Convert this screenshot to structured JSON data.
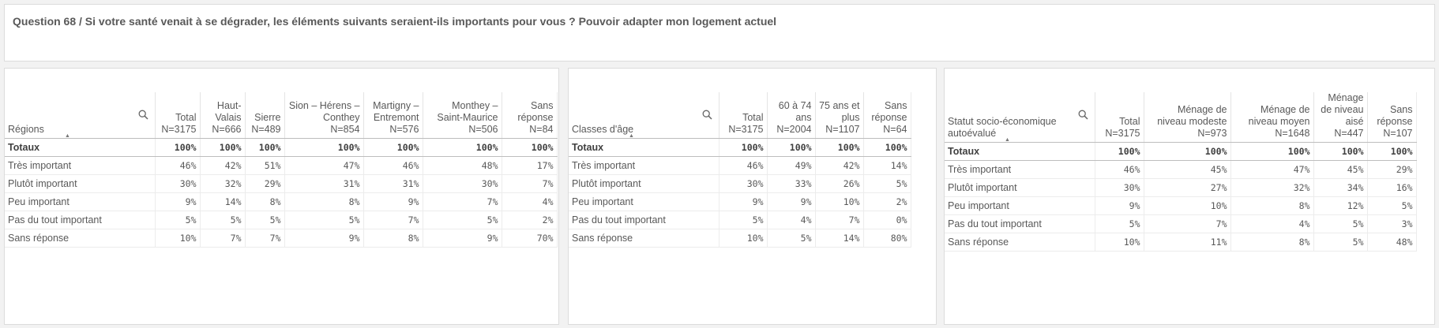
{
  "question": "Question 68 / Si votre santé venait à se dégrader, les éléments suivants seraient-ils importants pour vous ? Pouvoir adapter mon logement actuel",
  "row_labels": [
    "Totaux",
    "Très important",
    "Plutôt important",
    "Peu important",
    "Pas du tout important",
    "Sans réponse"
  ],
  "tables": [
    {
      "dimension": "Régions",
      "columns": [
        {
          "h1": "Total",
          "h2": "N=3175",
          "vals": [
            "100%",
            "46%",
            "30%",
            "9%",
            "5%",
            "10%"
          ]
        },
        {
          "h1": "Haut-Valais",
          "h2": "N=666",
          "vals": [
            "100%",
            "42%",
            "32%",
            "14%",
            "5%",
            "7%"
          ]
        },
        {
          "h1": "Sierre",
          "h2": "N=489",
          "vals": [
            "100%",
            "51%",
            "29%",
            "8%",
            "5%",
            "7%"
          ]
        },
        {
          "h1": "Sion – Hérens – Conthey",
          "h2": "N=854",
          "vals": [
            "100%",
            "47%",
            "31%",
            "8%",
            "5%",
            "9%"
          ]
        },
        {
          "h1": "Martigny – Entremont",
          "h2": "N=576",
          "vals": [
            "100%",
            "46%",
            "31%",
            "9%",
            "7%",
            "8%"
          ]
        },
        {
          "h1": "Monthey – Saint-Maurice",
          "h2": "N=506",
          "vals": [
            "100%",
            "48%",
            "30%",
            "7%",
            "5%",
            "9%"
          ]
        },
        {
          "h1": "Sans réponse",
          "h2": "N=84",
          "vals": [
            "100%",
            "17%",
            "7%",
            "4%",
            "2%",
            "70%"
          ]
        }
      ]
    },
    {
      "dimension": "Classes d'âge",
      "columns": [
        {
          "h1": "Total",
          "h2": "N=3175",
          "vals": [
            "100%",
            "46%",
            "30%",
            "9%",
            "5%",
            "10%"
          ]
        },
        {
          "h1": "60 à 74 ans",
          "h2": "N=2004",
          "vals": [
            "100%",
            "49%",
            "33%",
            "9%",
            "4%",
            "5%"
          ]
        },
        {
          "h1": "75 ans et plus",
          "h2": "N=1107",
          "vals": [
            "100%",
            "42%",
            "26%",
            "10%",
            "7%",
            "14%"
          ]
        },
        {
          "h1": "Sans réponse",
          "h2": "N=64",
          "vals": [
            "100%",
            "14%",
            "5%",
            "2%",
            "0%",
            "80%"
          ]
        }
      ]
    },
    {
      "dimension": "Statut socio-économique autoévalué",
      "columns": [
        {
          "h1": "Total",
          "h2": "N=3175",
          "vals": [
            "100%",
            "46%",
            "30%",
            "9%",
            "5%",
            "10%"
          ]
        },
        {
          "h1": "Ménage de niveau modeste",
          "h2": "N=973",
          "vals": [
            "100%",
            "45%",
            "27%",
            "10%",
            "7%",
            "11%"
          ]
        },
        {
          "h1": "Ménage de niveau moyen",
          "h2": "N=1648",
          "vals": [
            "100%",
            "47%",
            "32%",
            "8%",
            "4%",
            "8%"
          ]
        },
        {
          "h1": "Ménage de niveau aisé",
          "h2": "N=447",
          "vals": [
            "100%",
            "45%",
            "34%",
            "12%",
            "5%",
            "5%"
          ]
        },
        {
          "h1": "Sans réponse",
          "h2": "N=107",
          "vals": [
            "100%",
            "29%",
            "16%",
            "5%",
            "3%",
            "48%"
          ]
        }
      ]
    }
  ]
}
